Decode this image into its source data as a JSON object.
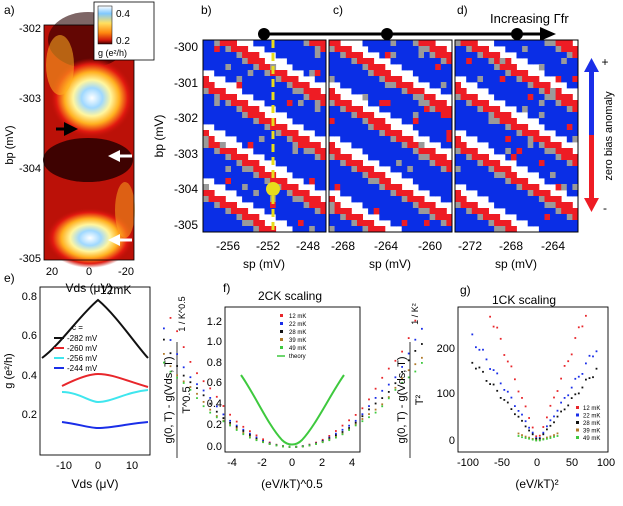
{
  "panels": {
    "a": {
      "label": "a)",
      "ylabel": "bp (mV)",
      "xlabel": "Vds (μV)",
      "yticks": [
        "-302",
        "-303",
        "-304",
        "-305"
      ],
      "xticks": [
        "20",
        "0",
        "-20"
      ],
      "colorbar_ticks": [
        "0.4",
        "0.2"
      ],
      "colorbar_label": "g (e²/h)"
    },
    "b": {
      "label": "b)",
      "ylabel": "bp (mV)",
      "xlabel": "sp (mV)",
      "yticks": [
        "-300",
        "-301",
        "-302",
        "-303",
        "-304",
        "-305"
      ],
      "xticks": [
        "-256",
        "-252",
        "-248"
      ]
    },
    "c": {
      "label": "c)",
      "xlabel": "sp (mV)",
      "xticks": [
        "-268",
        "-264",
        "-260"
      ]
    },
    "d": {
      "label": "d)",
      "xlabel": "sp (mV)",
      "xticks": [
        "-272",
        "-268",
        "-264"
      ]
    },
    "top_arrow_label": "Increasing Γfr",
    "side_label": "zero bias anomaly",
    "side_plus": "+",
    "side_minus": "-"
  },
  "panel_e": {
    "label": "e)",
    "temp": "12mK",
    "ylabel": "g (e²/h)",
    "xlabel": "Vds (μV)",
    "yticks": [
      "0.8",
      "0.6",
      "0.4",
      "0.2"
    ],
    "xticks": [
      "-10",
      "0",
      "10"
    ],
    "legend_title": "c =",
    "legend": [
      "-282 mV",
      "-260 mV",
      "-256 mV",
      "-244 mV"
    ]
  },
  "panel_f": {
    "label": "f)",
    "title": "2CK scaling",
    "ylabel_main": "g(0, T) - g(Vds, T)",
    "ylabel_denominator": "T^0.5",
    "ylabel_unit": "1 / K^0.5",
    "xlabel": "(eV/kT)^0.5",
    "yticks": [
      "1.2",
      "1.0",
      "0.8",
      "0.6",
      "0.4",
      "0.2",
      "0.0"
    ],
    "xticks": [
      "-4",
      "-2",
      "0",
      "2",
      "4"
    ],
    "legend": [
      "12 mK",
      "22 mK",
      "28 mK",
      "39 mK",
      "49 mK",
      "theory"
    ]
  },
  "panel_g": {
    "label": "g)",
    "title": "1CK scaling",
    "ylabel_main": "g(0, T) - g(Vds, T)",
    "ylabel_denominator": "T²",
    "ylabel_unit": "1 / K²",
    "xlabel": "(eV/kT)²",
    "yticks": [
      "200",
      "100",
      "0"
    ],
    "xticks": [
      "-100",
      "-50",
      "0",
      "50",
      "100"
    ],
    "legend": [
      "12 mK",
      "22 mK",
      "28 mK",
      "39 mK",
      "49 mK"
    ]
  },
  "colors": {
    "blue": "#0a2ee6",
    "red": "#ee1c24",
    "gray": "#9a9a9a",
    "yellow": "#e8dc1c",
    "series": [
      "#e8262b",
      "#1a2ee8",
      "#111111",
      "#b07a2a",
      "#3ec93e"
    ]
  }
}
